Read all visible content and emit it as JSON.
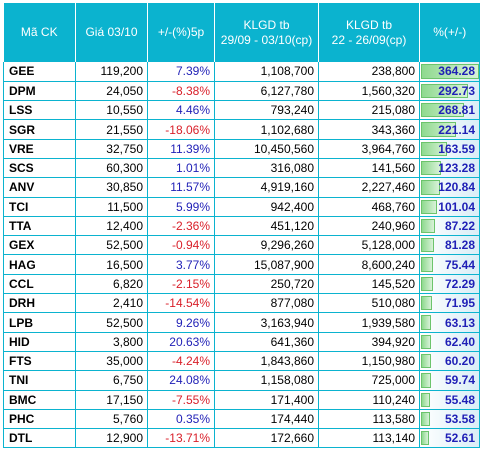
{
  "headers": {
    "ticker": "Mã CK",
    "price": "Giá 03/10",
    "change": "+/-(%)5p",
    "vol_a_1": "KLGD tb",
    "vol_a_2": "29/09 - 03/10(cp)",
    "vol_b_1": "KLGD tb",
    "vol_b_2": "22 - 26/09(cp)",
    "ratio": "%(+/-)"
  },
  "colors": {
    "header_bg": "#0bb3cf",
    "positive": "#1f1fb6",
    "negative": "#d9202a",
    "bar": "#8fd98f"
  },
  "bar_max": 364.28,
  "rows": [
    {
      "ticker": "GEE",
      "price": "119,200",
      "change": "7.39%",
      "vol_a": "1,108,700",
      "vol_b": "238,800",
      "ratio": "364.28",
      "ratio_value": 364.28,
      "dir": "pos"
    },
    {
      "ticker": "DPM",
      "price": "24,050",
      "change": "-8.38%",
      "vol_a": "6,127,780",
      "vol_b": "1,560,320",
      "ratio": "292.73",
      "ratio_value": 292.73,
      "dir": "neg"
    },
    {
      "ticker": "LSS",
      "price": "10,550",
      "change": "4.46%",
      "vol_a": "793,240",
      "vol_b": "215,080",
      "ratio": "268.81",
      "ratio_value": 268.81,
      "dir": "pos"
    },
    {
      "ticker": "SGR",
      "price": "21,550",
      "change": "-18.06%",
      "vol_a": "1,102,680",
      "vol_b": "343,360",
      "ratio": "221.14",
      "ratio_value": 221.14,
      "dir": "neg"
    },
    {
      "ticker": "VRE",
      "price": "32,750",
      "change": "11.39%",
      "vol_a": "10,450,560",
      "vol_b": "3,964,760",
      "ratio": "163.59",
      "ratio_value": 163.59,
      "dir": "pos"
    },
    {
      "ticker": "SCS",
      "price": "60,300",
      "change": "1.01%",
      "vol_a": "316,080",
      "vol_b": "141,560",
      "ratio": "123.28",
      "ratio_value": 123.28,
      "dir": "pos"
    },
    {
      "ticker": "ANV",
      "price": "30,850",
      "change": "11.57%",
      "vol_a": "4,919,160",
      "vol_b": "2,227,460",
      "ratio": "120.84",
      "ratio_value": 120.84,
      "dir": "pos"
    },
    {
      "ticker": "TCI",
      "price": "11,500",
      "change": "5.99%",
      "vol_a": "942,400",
      "vol_b": "468,760",
      "ratio": "101.04",
      "ratio_value": 101.04,
      "dir": "pos"
    },
    {
      "ticker": "TTA",
      "price": "12,400",
      "change": "-2.36%",
      "vol_a": "451,120",
      "vol_b": "240,960",
      "ratio": "87.22",
      "ratio_value": 87.22,
      "dir": "neg"
    },
    {
      "ticker": "GEX",
      "price": "52,500",
      "change": "-0.94%",
      "vol_a": "9,296,260",
      "vol_b": "5,128,000",
      "ratio": "81.28",
      "ratio_value": 81.28,
      "dir": "neg"
    },
    {
      "ticker": "HAG",
      "price": "16,500",
      "change": "3.77%",
      "vol_a": "15,087,900",
      "vol_b": "8,600,240",
      "ratio": "75.44",
      "ratio_value": 75.44,
      "dir": "pos"
    },
    {
      "ticker": "CCL",
      "price": "6,820",
      "change": "-2.15%",
      "vol_a": "250,720",
      "vol_b": "145,520",
      "ratio": "72.29",
      "ratio_value": 72.29,
      "dir": "neg"
    },
    {
      "ticker": "DRH",
      "price": "2,410",
      "change": "-14.54%",
      "vol_a": "877,080",
      "vol_b": "510,080",
      "ratio": "71.95",
      "ratio_value": 71.95,
      "dir": "neg"
    },
    {
      "ticker": "LPB",
      "price": "52,500",
      "change": "9.26%",
      "vol_a": "3,163,940",
      "vol_b": "1,939,580",
      "ratio": "63.13",
      "ratio_value": 63.13,
      "dir": "pos"
    },
    {
      "ticker": "HID",
      "price": "3,800",
      "change": "20.63%",
      "vol_a": "641,360",
      "vol_b": "394,920",
      "ratio": "62.40",
      "ratio_value": 62.4,
      "dir": "pos"
    },
    {
      "ticker": "FTS",
      "price": "35,000",
      "change": "-4.24%",
      "vol_a": "1,843,860",
      "vol_b": "1,150,980",
      "ratio": "60.20",
      "ratio_value": 60.2,
      "dir": "neg"
    },
    {
      "ticker": "TNI",
      "price": "6,750",
      "change": "24.08%",
      "vol_a": "1,158,080",
      "vol_b": "725,000",
      "ratio": "59.74",
      "ratio_value": 59.74,
      "dir": "pos"
    },
    {
      "ticker": "BMC",
      "price": "17,150",
      "change": "-7.55%",
      "vol_a": "171,400",
      "vol_b": "110,240",
      "ratio": "55.48",
      "ratio_value": 55.48,
      "dir": "neg"
    },
    {
      "ticker": "PHC",
      "price": "5,760",
      "change": "0.35%",
      "vol_a": "174,440",
      "vol_b": "113,580",
      "ratio": "53.58",
      "ratio_value": 53.58,
      "dir": "pos"
    },
    {
      "ticker": "DTL",
      "price": "12,900",
      "change": "-13.71%",
      "vol_a": "172,660",
      "vol_b": "113,140",
      "ratio": "52.61",
      "ratio_value": 52.61,
      "dir": "neg"
    }
  ]
}
